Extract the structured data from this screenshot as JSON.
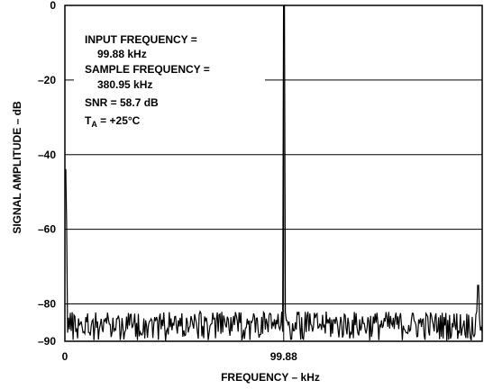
{
  "chart_data": {
    "type": "line",
    "title": "",
    "xlabel": "FREQUENCY – kHz",
    "ylabel": "SIGNAL AMPLITUDE – dB",
    "x_range_khz": [
      0,
      190.48
    ],
    "ylim": [
      -90,
      0
    ],
    "grid": true,
    "x_tick_labels": [
      {
        "x": 0,
        "label": "0"
      },
      {
        "x": 99.88,
        "label": "99.88"
      }
    ],
    "y_ticks": [
      0,
      -20,
      -40,
      -60,
      -80,
      -90
    ],
    "y_tick_labels": [
      "0",
      "–20",
      "–40",
      "–60",
      "–80",
      "–90"
    ],
    "annotation": {
      "line1": "INPUT FREQUENCY =",
      "line2": "99.88 kHz",
      "line3": "SAMPLE FREQUENCY =",
      "line4": "380.95 kHz",
      "line5": "SNR = 58.7 dB",
      "line6_main": "T",
      "line6_sub": "A",
      "line6_rest": " = +25°C"
    },
    "series": [
      {
        "noise_floor_range_db": [
          -90,
          -82
        ],
        "features": [
          {
            "x": 0,
            "y": -44,
            "label": "DC bin"
          },
          {
            "x": 99.88,
            "y": 0,
            "label": "fundamental"
          },
          {
            "x": 188.5,
            "y": -75,
            "label": "spur"
          }
        ]
      }
    ]
  }
}
